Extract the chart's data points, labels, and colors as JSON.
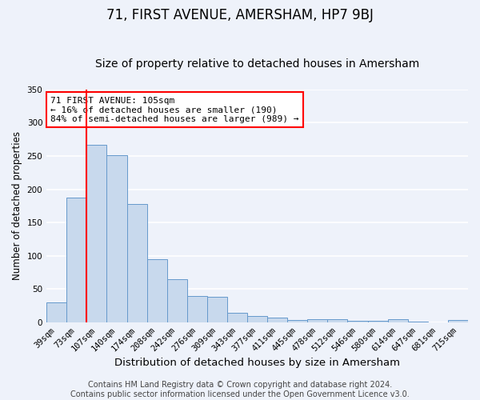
{
  "title": "71, FIRST AVENUE, AMERSHAM, HP7 9BJ",
  "subtitle": "Size of property relative to detached houses in Amersham",
  "xlabel": "Distribution of detached houses by size in Amersham",
  "ylabel": "Number of detached properties",
  "bin_labels": [
    "39sqm",
    "73sqm",
    "107sqm",
    "140sqm",
    "174sqm",
    "208sqm",
    "242sqm",
    "276sqm",
    "309sqm",
    "343sqm",
    "377sqm",
    "411sqm",
    "445sqm",
    "478sqm",
    "512sqm",
    "546sqm",
    "580sqm",
    "614sqm",
    "647sqm",
    "681sqm",
    "715sqm"
  ],
  "bar_heights": [
    30,
    187,
    267,
    251,
    178,
    95,
    65,
    40,
    39,
    14,
    10,
    7,
    4,
    5,
    5,
    2,
    2,
    5,
    1,
    0,
    3
  ],
  "bar_color": "#c8d9ed",
  "bar_edge_color": "#6699cc",
  "annotation_text": "71 FIRST AVENUE: 105sqm\n← 16% of detached houses are smaller (190)\n84% of semi-detached houses are larger (989) →",
  "annotation_box_color": "white",
  "annotation_box_edge_color": "red",
  "vline_color": "red",
  "ylim": [
    0,
    350
  ],
  "yticks": [
    0,
    50,
    100,
    150,
    200,
    250,
    300,
    350
  ],
  "footer_text": "Contains HM Land Registry data © Crown copyright and database right 2024.\nContains public sector information licensed under the Open Government Licence v3.0.",
  "background_color": "#eef2fa",
  "grid_color": "white",
  "title_fontsize": 12,
  "subtitle_fontsize": 10,
  "xlabel_fontsize": 9.5,
  "ylabel_fontsize": 8.5,
  "tick_fontsize": 7.5,
  "footer_fontsize": 7,
  "annotation_fontsize": 8
}
